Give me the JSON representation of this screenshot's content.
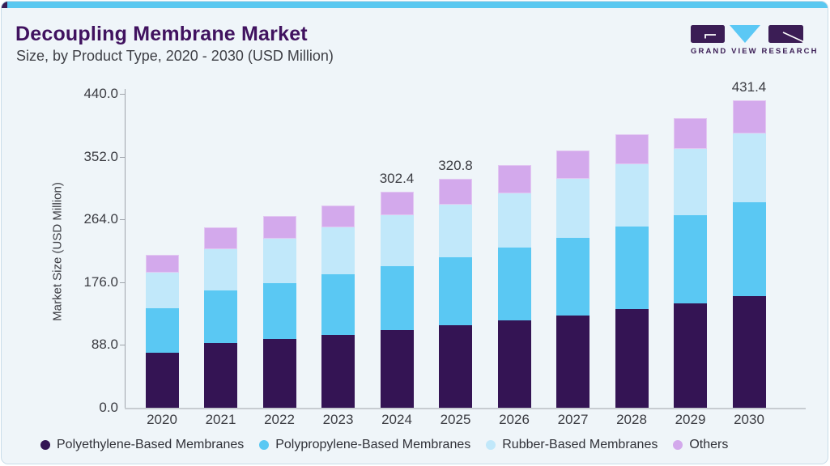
{
  "header": {
    "title": "Decoupling Membrane Market",
    "subtitle": "Size, by Product Type, 2020 - 2030 (USD Million)"
  },
  "logo": {
    "text": "GRAND VIEW RESEARCH",
    "purple": "#3B1D55",
    "cyan": "#5BC8F5"
  },
  "colors": {
    "card_background": "#EFF5F9",
    "card_border": "#C9DCE9",
    "top_strip": "#5AC8F0",
    "top_strip_accent": "#3B1D55",
    "title_text": "#40125F",
    "subtitle_text": "#3F4046",
    "axis_text": "#3B3C42",
    "legend_text": "#303138",
    "y_axis_line": "#9FA4AB",
    "x_axis_line": "#C7CCD1"
  },
  "chart_data": {
    "type": "bar",
    "stacked": true,
    "title": "Decoupling Membrane Market Size, by Product Type, 2020 - 2030 (USD Million)",
    "categories": [
      "2020",
      "2021",
      "2022",
      "2023",
      "2024",
      "2025",
      "2026",
      "2027",
      "2028",
      "2029",
      "2030"
    ],
    "series": [
      {
        "name": "Polyethylene-Based Membranes",
        "color": "#341454",
        "values": [
          76.6,
          90.4,
          96.1,
          102.5,
          108.9,
          115.4,
          122.2,
          129.7,
          138.4,
          146.7,
          156.2
        ]
      },
      {
        "name": "Polypropylene-Based Membranes",
        "color": "#5AC8F3",
        "values": [
          62.9,
          73.8,
          79.0,
          84.4,
          89.7,
          96.0,
          102.1,
          108.9,
          116.1,
          123.0,
          131.7
        ]
      },
      {
        "name": "Rubber-Based Membranes",
        "color": "#C1E8FA",
        "values": [
          49.9,
          58.2,
          62.4,
          65.8,
          71.1,
          73.8,
          76.7,
          82.5,
          87.0,
          93.7,
          97.1
        ]
      },
      {
        "name": "Others",
        "color": "#D3A9EC",
        "values": [
          24.5,
          30.3,
          31.1,
          31.3,
          32.7,
          35.6,
          39.1,
          39.7,
          41.7,
          42.5,
          46.4
        ]
      }
    ],
    "totals": [
      213.9,
      252.7,
      268.6,
      284.0,
      302.4,
      320.8,
      340.1,
      360.8,
      383.2,
      405.9,
      431.4
    ],
    "data_labels": [
      "",
      "",
      "",
      "",
      "302.4",
      "320.8",
      "",
      "",
      "",
      "",
      "431.4"
    ],
    "ylabel": "Market Size (USD Million)",
    "xlabel": "",
    "yticks": [
      "440.0",
      "352.0",
      "264.0",
      "176.0",
      "88.0",
      "0.0"
    ],
    "ylim": [
      0,
      440
    ],
    "grid": false,
    "legend_position": "bottom"
  }
}
